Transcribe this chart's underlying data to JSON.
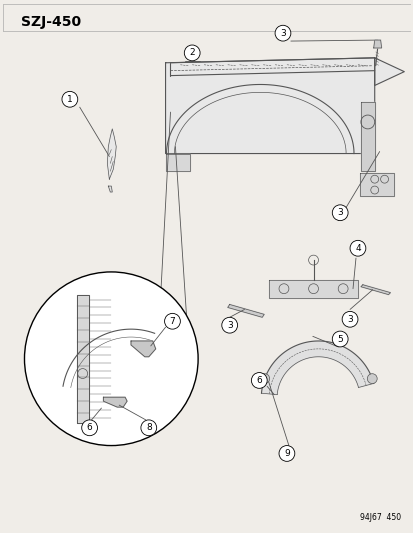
{
  "title": "SZJ-450",
  "footer": "94J67  450",
  "bg_color": "#f0ede8",
  "label_color": "#000000",
  "line_color": "#555555",
  "fig_w": 4.14,
  "fig_h": 5.33,
  "dpi": 100
}
